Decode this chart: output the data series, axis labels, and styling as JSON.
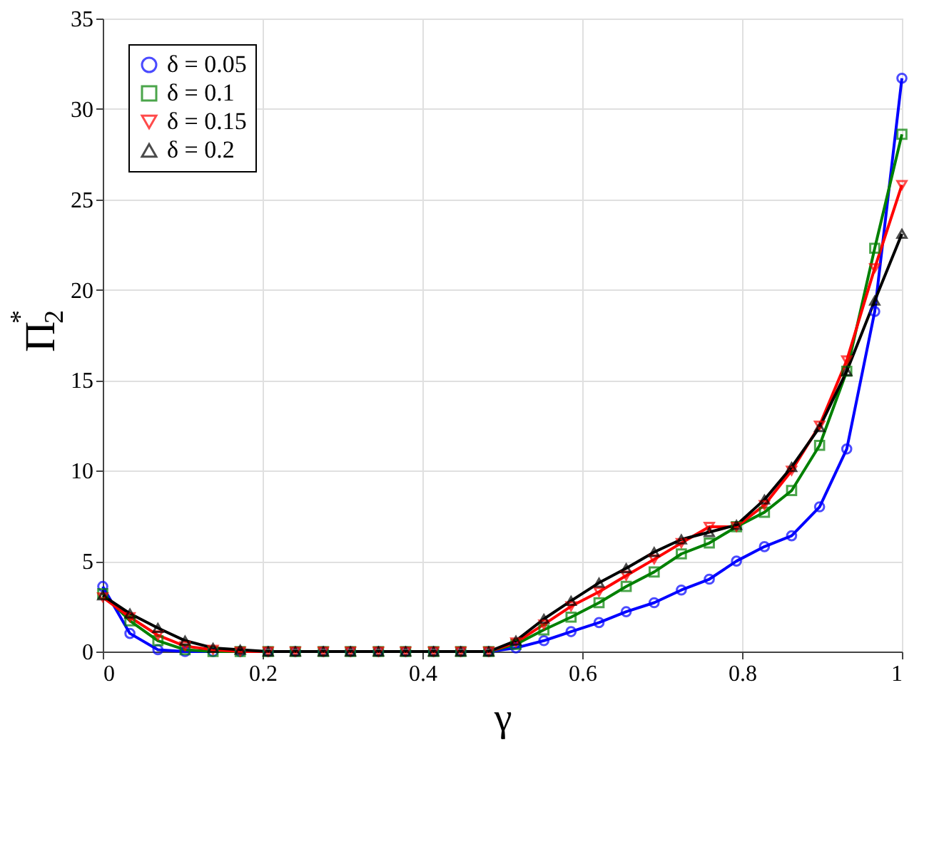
{
  "chart_data": {
    "type": "line",
    "xlabel": "γ",
    "ylabel": "Π$_{2}$$^{*}$",
    "x": [
      0,
      0.034,
      0.069,
      0.103,
      0.138,
      0.172,
      0.207,
      0.241,
      0.276,
      0.31,
      0.345,
      0.379,
      0.414,
      0.448,
      0.483,
      0.517,
      0.552,
      0.586,
      0.621,
      0.655,
      0.69,
      0.724,
      0.759,
      0.793,
      0.828,
      0.862,
      0.897,
      0.931,
      0.966,
      1
    ],
    "series": [
      {
        "name": "δ = 0.05",
        "color": "#0000ff",
        "marker": "circle",
        "values": [
          3.6,
          1.0,
          0.1,
          0.0,
          0.0,
          0,
          0,
          0,
          0,
          0,
          0,
          0,
          0,
          0,
          0,
          0.2,
          0.6,
          1.1,
          1.6,
          2.2,
          2.7,
          3.4,
          4.0,
          5.0,
          5.8,
          6.4,
          8.0,
          11.2,
          18.8,
          31.7
        ]
      },
      {
        "name": "δ = 0.1",
        "color": "#008000",
        "marker": "square",
        "values": [
          3.2,
          1.7,
          0.6,
          0.1,
          0.0,
          0,
          0,
          0,
          0,
          0,
          0,
          0,
          0,
          0,
          0,
          0.4,
          1.2,
          1.9,
          2.7,
          3.6,
          4.4,
          5.4,
          6.0,
          6.9,
          7.7,
          8.9,
          11.4,
          15.5,
          22.3,
          28.6
        ]
      },
      {
        "name": "δ = 0.15",
        "color": "#ff0000",
        "marker": "triangle_down",
        "values": [
          3.0,
          1.9,
          0.9,
          0.3,
          0.1,
          0,
          0,
          0,
          0,
          0,
          0,
          0,
          0,
          0,
          0,
          0.5,
          1.5,
          2.5,
          3.3,
          4.2,
          5.1,
          6.0,
          6.9,
          6.9,
          8.1,
          10.0,
          12.5,
          16.1,
          21.2,
          25.8
        ]
      },
      {
        "name": "δ = 0.2",
        "color": "#000000",
        "marker": "triangle",
        "values": [
          3.1,
          2.1,
          1.3,
          0.6,
          0.2,
          0.1,
          0,
          0,
          0,
          0,
          0,
          0,
          0,
          0,
          0,
          0.6,
          1.8,
          2.8,
          3.8,
          4.6,
          5.5,
          6.2,
          6.6,
          7.0,
          8.4,
          10.2,
          12.4,
          15.5,
          19.4,
          23.1
        ]
      }
    ],
    "xlim": [
      0,
      1
    ],
    "xticks": [
      0,
      0.2,
      0.4,
      0.6,
      0.8,
      1
    ],
    "ylim": [
      0,
      35
    ],
    "yticks": [
      0,
      5,
      10,
      15,
      20,
      25,
      30,
      35
    ],
    "grid": true,
    "legend": "top left",
    "line_style": "solid"
  }
}
